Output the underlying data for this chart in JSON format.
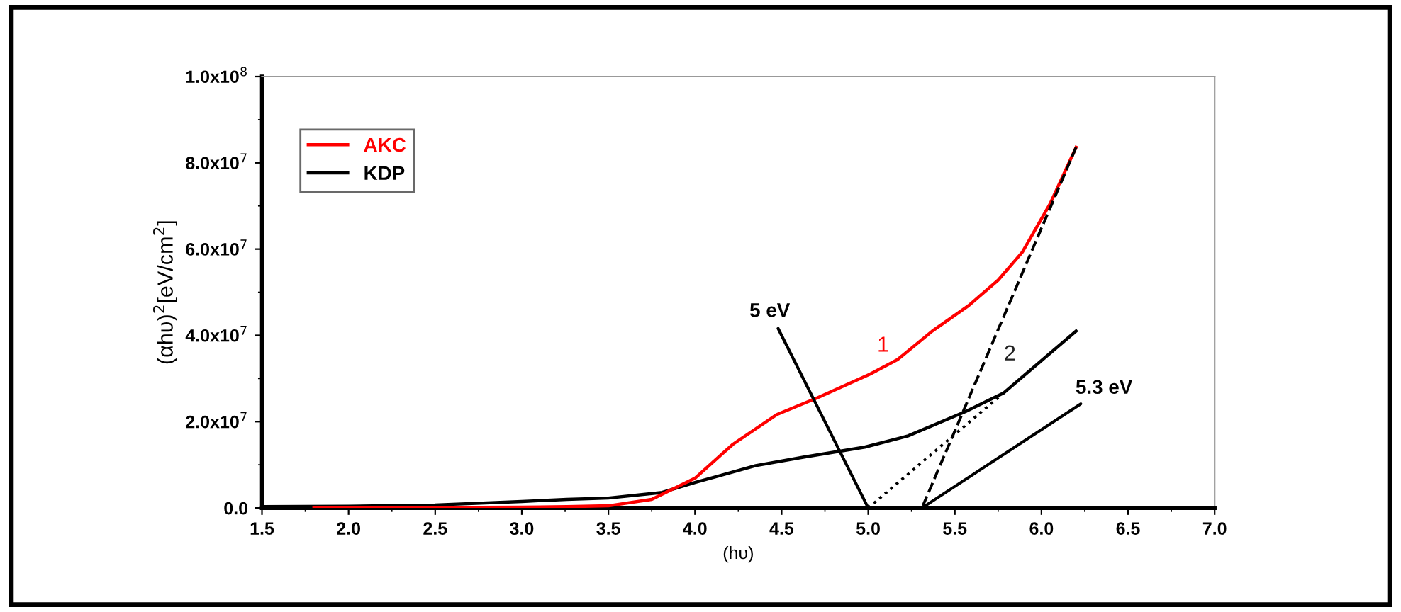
{
  "chart_data": {
    "type": "line",
    "xlabel": "(hυ)",
    "ylabel": "(αhυ)$^{2}$[eV/cm$^{2}$]",
    "series": [
      {
        "name": "AKC",
        "color": "#ff0000",
        "x": [
          1.8,
          2.5,
          3.0,
          3.26,
          3.5,
          3.75,
          4.0,
          4.22,
          4.47,
          4.71,
          5.01,
          5.17,
          5.37,
          5.58,
          5.75,
          5.89,
          6.05,
          6.2
        ],
        "values": [
          100000,
          100000,
          200000,
          300000,
          500000,
          2000000,
          6900000,
          14800000,
          21600000,
          25600000,
          31000000,
          34400000,
          41000000,
          46900000,
          52800000,
          59300000,
          70500000,
          83600000
        ]
      },
      {
        "name": "KDP",
        "color": "#000000",
        "x": [
          1.5,
          2.0,
          2.5,
          3.0,
          3.26,
          3.5,
          3.81,
          4.0,
          4.35,
          4.63,
          4.98,
          5.23,
          5.56,
          5.78,
          5.99,
          6.2
        ],
        "values": [
          300000,
          400000,
          700000,
          1500000,
          2000000,
          2300000,
          3600000,
          5900000,
          9800000,
          11800000,
          14100000,
          16700000,
          22300000,
          26600000,
          33800000,
          41000000
        ]
      },
      {
        "color": "#000000",
        "line_style": "dashed",
        "x": [
          5.31,
          6.2
        ],
        "values": [
          0,
          83600000
        ]
      },
      {
        "color": "#000000",
        "line_style": "dotted",
        "x": [
          5.0,
          5.78
        ],
        "values": [
          0,
          26600000
        ]
      }
    ],
    "xlim": [
      1.5,
      7.0
    ],
    "xticks": [
      {
        "value": 1.5,
        "label": "1.5"
      },
      {
        "value": 2.0,
        "label": "2.0"
      },
      {
        "value": 2.5,
        "label": "2.5"
      },
      {
        "value": 3.0,
        "label": "3.0"
      },
      {
        "value": 3.5,
        "label": "3.5"
      },
      {
        "value": 4.0,
        "label": "4.0"
      },
      {
        "value": 4.5,
        "label": "4.5"
      },
      {
        "value": 5.0,
        "label": "5.0"
      },
      {
        "value": 5.5,
        "label": "5.5"
      },
      {
        "value": 6.0,
        "label": "6.0"
      },
      {
        "value": 6.5,
        "label": "6.5"
      },
      {
        "value": 7.0,
        "label": "7.0"
      }
    ],
    "ylim": [
      0,
      100000000
    ],
    "yticks": [
      {
        "value": 0,
        "label": "0.0"
      },
      {
        "value": 20000000,
        "label": "2.0x10$^{7}$"
      },
      {
        "value": 40000000,
        "label": "4.0x10$^{7}$"
      },
      {
        "value": 60000000,
        "label": "6.0x10$^{7}$"
      },
      {
        "value": 80000000,
        "label": "8.0x10$^{7}$"
      },
      {
        "value": 100000000,
        "label": "1.0x10$^{8}$"
      }
    ],
    "annotations": [
      {
        "text": "5 eV",
        "x": 5.0,
        "y": 0
      },
      {
        "text": "5.3 eV",
        "x": 5.31,
        "y": 0
      },
      "1",
      "2"
    ],
    "legend": "top left",
    "grid": false,
    "marker": "none"
  }
}
